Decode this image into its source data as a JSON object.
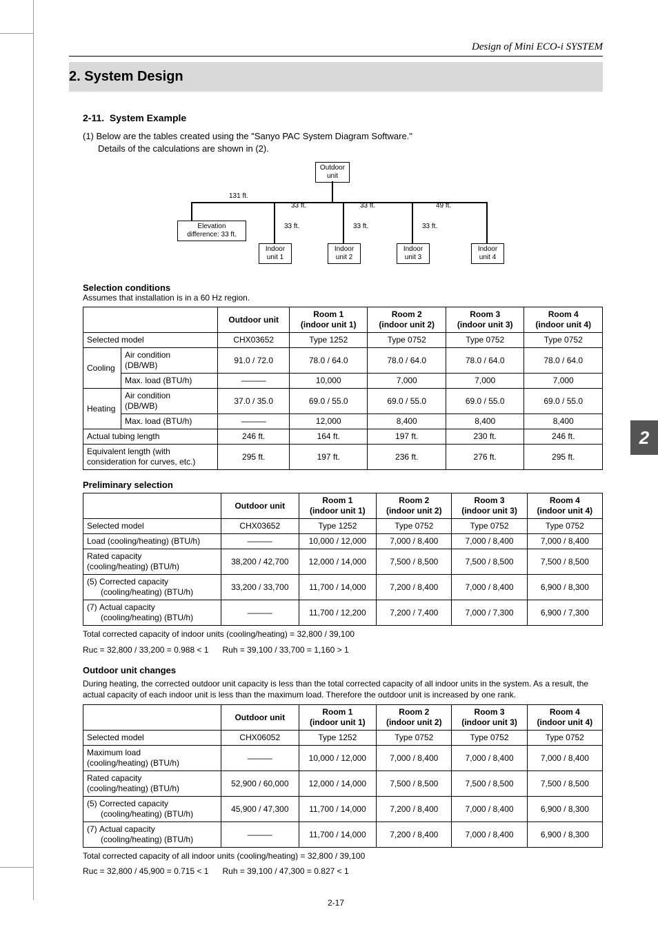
{
  "header": {
    "right_title": "Design of Mini ECO-i SYSTEM"
  },
  "section": {
    "title": "2. System Design"
  },
  "subsection": {
    "number": "2-11.",
    "title": "System Example",
    "intro_1": "(1) Below are the tables created using the \"Sanyo PAC System Diagram Software.\"",
    "intro_2": "Details of the calculations are shown in (2)."
  },
  "diagram": {
    "outdoor": "Outdoor\nunit",
    "indoor1": "Indoor\nunit 1",
    "indoor2": "Indoor\nunit 2",
    "indoor3": "Indoor\nunit 3",
    "indoor4": "Indoor\nunit 4",
    "len_main": "131 ft.",
    "len_b1": "33 ft.",
    "len_b2": "33 ft.",
    "len_b3": "49 ft.",
    "len_d1": "33 ft.",
    "len_d2": "33 ft.",
    "len_d3": "33 ft.",
    "elev": "Elevation\ndifference: 33 ft."
  },
  "selection_conditions": {
    "heading": "Selection conditions",
    "note": "Assumes that installation is in a 60 Hz region.",
    "headers": [
      "",
      "Outdoor unit",
      "Room 1\n(indoor unit 1)",
      "Room 2\n(indoor unit 2)",
      "Room 3\n(indoor unit 3)",
      "Room 4\n(indoor unit 4)"
    ],
    "rows": {
      "selected_model": {
        "label": "Selected model",
        "vals": [
          "CHX03652",
          "Type 1252",
          "Type 0752",
          "Type 0752",
          "Type 0752"
        ]
      },
      "cooling_label": "Cooling",
      "cooling_air": {
        "label": "Air condition\n(DB/WB)",
        "vals": [
          "91.0 / 72.0",
          "78.0 / 64.0",
          "78.0 / 64.0",
          "78.0 / 64.0",
          "78.0 / 64.0"
        ]
      },
      "cooling_max": {
        "label": "Max. load (BTU/h)",
        "vals": [
          "———",
          "10,000",
          "7,000",
          "7,000",
          "7,000"
        ]
      },
      "heating_label": "Heating",
      "heating_air": {
        "label": "Air condition\n(DB/WB)",
        "vals": [
          "37.0 / 35.0",
          "69.0 / 55.0",
          "69.0 / 55.0",
          "69.0 / 55.0",
          "69.0 / 55.0"
        ]
      },
      "heating_max": {
        "label": "Max. load (BTU/h)",
        "vals": [
          "———",
          "12,000",
          "8,400",
          "8,400",
          "8,400"
        ]
      },
      "actual_tubing": {
        "label": "Actual tubing length",
        "vals": [
          "246 ft.",
          "164 ft.",
          "197 ft.",
          "230 ft.",
          "246 ft."
        ]
      },
      "equivalent": {
        "label": "Equivalent length (with\nconsideration for curves, etc.)",
        "vals": [
          "295 ft.",
          "197 ft.",
          "236 ft.",
          "276 ft.",
          "295 ft."
        ]
      }
    }
  },
  "preliminary": {
    "heading": "Preliminary selection",
    "headers": [
      "",
      "Outdoor unit",
      "Room 1\n(indoor unit 1)",
      "Room 2\n(indoor unit 2)",
      "Room 3\n(indoor unit 3)",
      "Room 4\n(indoor unit 4)"
    ],
    "rows": {
      "selected_model": {
        "label": "Selected model",
        "vals": [
          "CHX03652",
          "Type 1252",
          "Type 0752",
          "Type 0752",
          "Type 0752"
        ]
      },
      "load": {
        "label": "Load (cooling/heating) (BTU/h)",
        "vals": [
          "———",
          "10,000 / 12,000",
          "7,000 / 8,400",
          "7,000 / 8,400",
          "7,000 / 8,400"
        ]
      },
      "rated": {
        "label": "Rated capacity\n(cooling/heating) (BTU/h)",
        "vals": [
          "38,200 / 42,700",
          "12,000 / 14,000",
          "7,500 / 8,500",
          "7,500 / 8,500",
          "7,500 / 8,500"
        ]
      },
      "corrected": {
        "label": "(5) Corrected capacity\n      (cooling/heating) (BTU/h)",
        "vals": [
          "33,200 / 33,700",
          "11,700 / 14,000",
          "7,200 / 8,400",
          "7,000 / 8,400",
          "6,900 / 8,300"
        ]
      },
      "actual": {
        "label": "(7) Actual capacity\n      (cooling/heating) (BTU/h)",
        "vals": [
          "———",
          "11,700 / 12,200",
          "7,200 / 7,400",
          "7,000 / 7,300",
          "6,900 / 7,300"
        ]
      }
    },
    "summary1": "Total corrected capacity of indoor units (cooling/heating) = 32,800 / 39,100",
    "summary2": "Ruc = 32,800 / 33,200 = 0.988 < 1      Ruh = 39,100 / 33,700 = 1,160 > 1"
  },
  "outdoor_changes": {
    "heading": "Outdoor unit changes",
    "para": "During heating, the corrected outdoor unit capacity is less than the total corrected capacity of all indoor units in the system. As a result, the actual capacity of each indoor unit is less than the maximum load. Therefore the outdoor unit is increased by one rank.",
    "headers": [
      "",
      "Outdoor unit",
      "Room 1\n(indoor unit 1)",
      "Room 2\n(indoor unit 2)",
      "Room 3\n(indoor unit 3)",
      "Room 4\n(indoor unit 4)"
    ],
    "rows": {
      "selected_model": {
        "label": "Selected model",
        "vals": [
          "CHX06052",
          "Type 1252",
          "Type 0752",
          "Type 0752",
          "Type 0752"
        ]
      },
      "max_load": {
        "label": "Maximum load\n(cooling/heating) (BTU/h)",
        "vals": [
          "———",
          "10,000 / 12,000",
          "7,000 / 8,400",
          "7,000 / 8,400",
          "7,000 / 8,400"
        ]
      },
      "rated": {
        "label": "Rated capacity\n(cooling/heating) (BTU/h)",
        "vals": [
          "52,900 / 60,000",
          "12,000 / 14,000",
          "7,500 / 8,500",
          "7,500 / 8,500",
          "7,500 / 8,500"
        ]
      },
      "corrected": {
        "label": "(5) Corrected capacity\n      (cooling/heating) (BTU/h)",
        "vals": [
          "45,900 / 47,300",
          "11,700 / 14,000",
          "7,200 / 8,400",
          "7,000 / 8,400",
          "6,900 / 8,300"
        ]
      },
      "actual": {
        "label": "(7) Actual capacity\n      (cooling/heating) (BTU/h)",
        "vals": [
          "———",
          "11,700 / 14,000",
          "7,200 / 8,400",
          "7,000 / 8,400",
          "6,900 / 8,300"
        ]
      }
    },
    "summary1": "Total corrected capacity of all indoor units (cooling/heating) = 32,800 / 39,100",
    "summary2": "Ruc = 32,800 / 45,900 = 0.715 < 1      Ruh = 39,100 / 47,300 = 0.827 < 1"
  },
  "page_number": "2-17",
  "side_tab": "2"
}
